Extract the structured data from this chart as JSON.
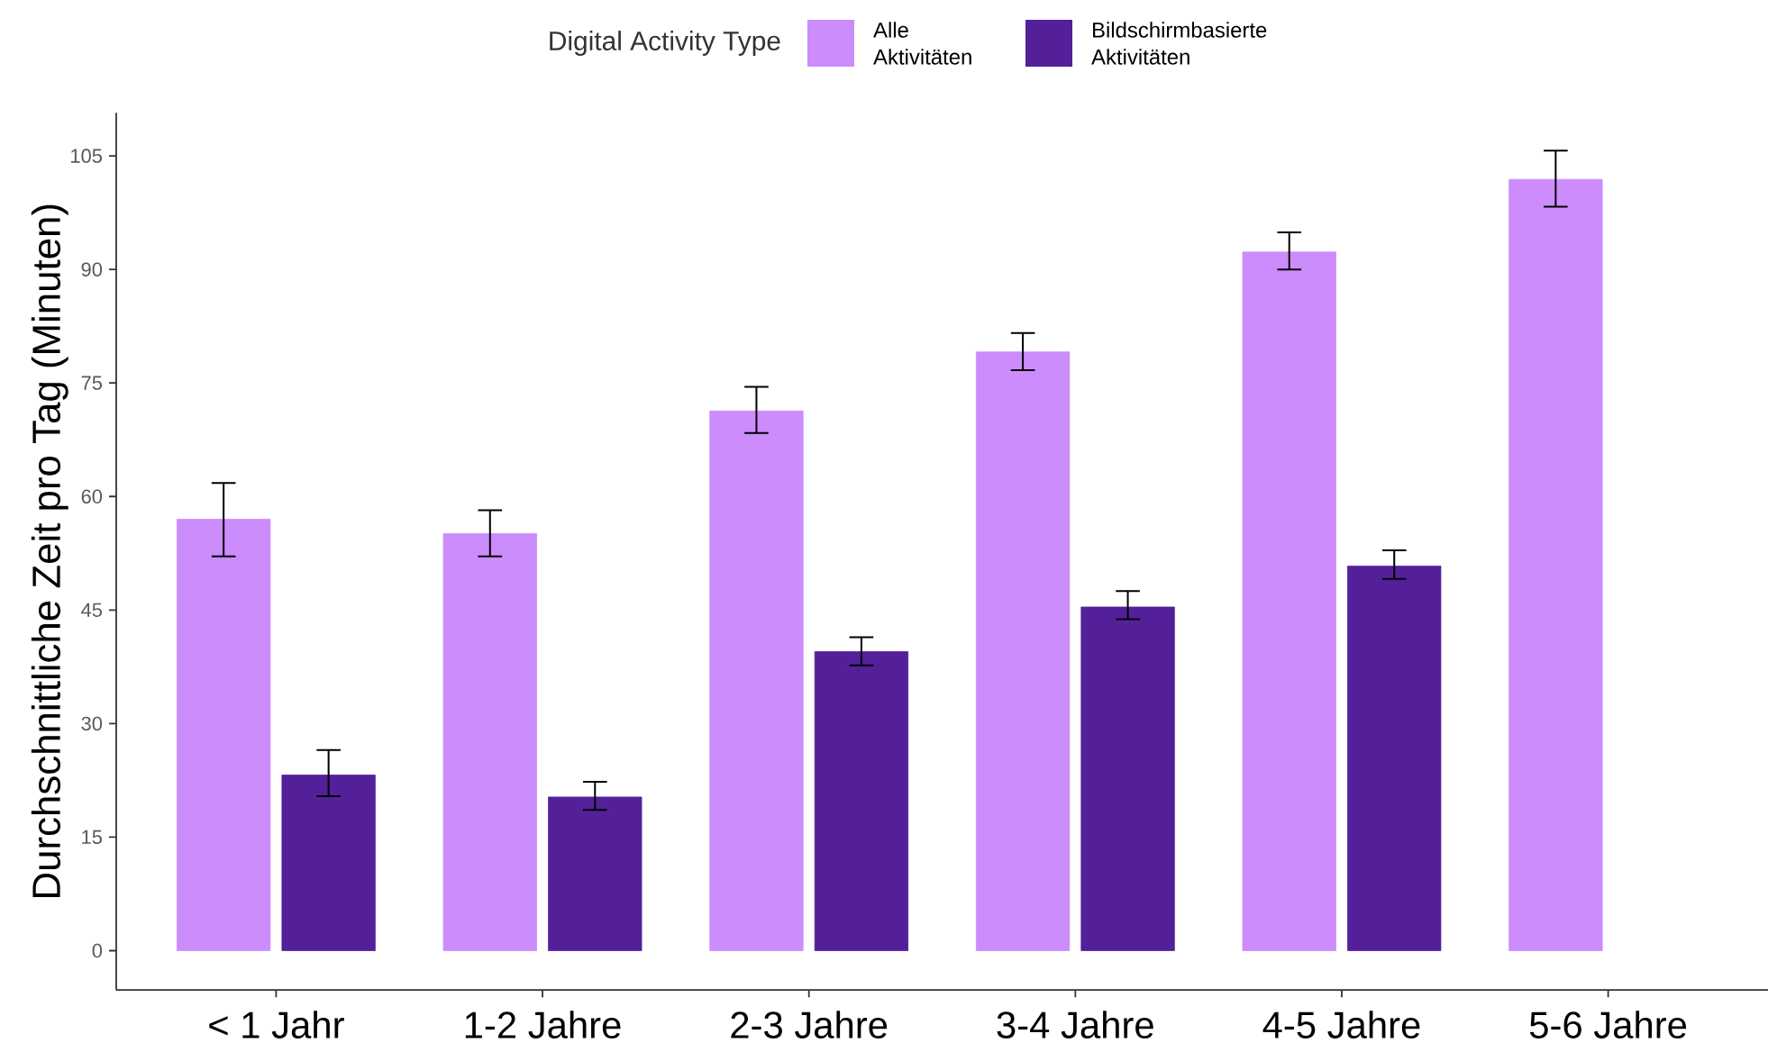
{
  "chart_data": {
    "type": "bar",
    "ylabel": "Durchschnittliche Zeit pro Tag (Minuten)",
    "legend_title": "Digital Activity Type",
    "legend": "top",
    "categories": [
      "< 1 Jahr",
      "1-2 Jahre",
      "2-3 Jahre",
      "3-4 Jahre",
      "4-5 Jahre",
      "5-6 Jahre"
    ],
    "series": [
      {
        "name": "Alle Aktivitäten",
        "color": "#cc8cfc",
        "values": [
          57,
          55.1,
          71.3,
          79.1,
          92.3,
          101.9
        ],
        "errors": [
          [
            52.1,
            61.8
          ],
          [
            52.1,
            58.2
          ],
          [
            68.4,
            74.5
          ],
          [
            76.7,
            81.6
          ],
          [
            90.0,
            94.9
          ],
          [
            98.3,
            105.7
          ]
        ]
      },
      {
        "name": "Bildschirmbasierte Aktivitäten",
        "color": "#54209a",
        "values": [
          23.2,
          20.3,
          39.5,
          45.4,
          50.8,
          null
        ],
        "errors": [
          [
            20.4,
            26.5
          ],
          [
            18.6,
            22.3
          ],
          [
            37.7,
            41.4
          ],
          [
            43.8,
            47.5
          ],
          [
            49.1,
            52.9
          ],
          null
        ]
      }
    ],
    "ylim": [
      -5.2,
      110.7
    ],
    "yticks": [
      0,
      15,
      30,
      45,
      60,
      75,
      90,
      105
    ]
  }
}
